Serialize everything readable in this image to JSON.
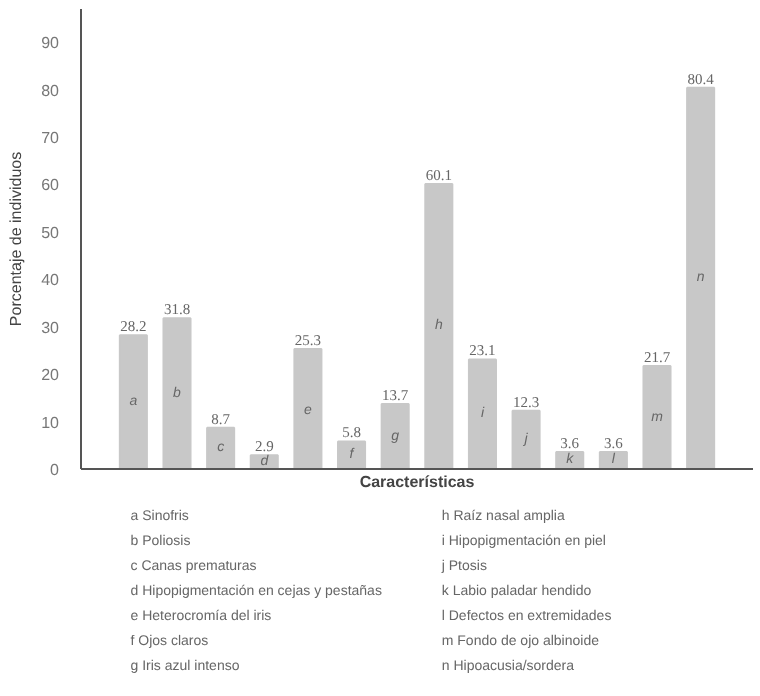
{
  "chart_data": {
    "type": "bar",
    "xlabel": "Características",
    "ylabel": "Porcentaje de individuos",
    "categories": [
      "a",
      "b",
      "c",
      "d",
      "e",
      "f",
      "g",
      "h",
      "i",
      "j",
      "k",
      "l",
      "m",
      "n"
    ],
    "values": [
      28.2,
      31.8,
      8.7,
      2.9,
      25.3,
      5.8,
      13.7,
      60.1,
      23.1,
      12.3,
      3.6,
      3.6,
      21.7,
      80.4
    ],
    "color": "#c8c8c8",
    "data_labels": true,
    "ylim": [
      0,
      97
    ],
    "yticks": [
      0,
      10,
      20,
      30,
      40,
      50,
      60,
      70,
      80,
      90
    ],
    "grid": false,
    "annotations": [
      "a  Sinofris",
      "b  Poliosis",
      "c  Canas prematuras",
      "d  Hipopigmentación en cejas y pestañas",
      "e  Heterocromía del iris",
      "f  Ojos claros",
      "g  Iris azul intenso",
      "h  Raíz nasal amplia",
      "i  Hipopigmentación en piel",
      "j  Ptosis",
      "k  Labio paladar hendido",
      "l  Defectos en extremidades",
      "m  Fondo de ojo albinoide",
      "n  Hipoacusia/sordera"
    ]
  }
}
